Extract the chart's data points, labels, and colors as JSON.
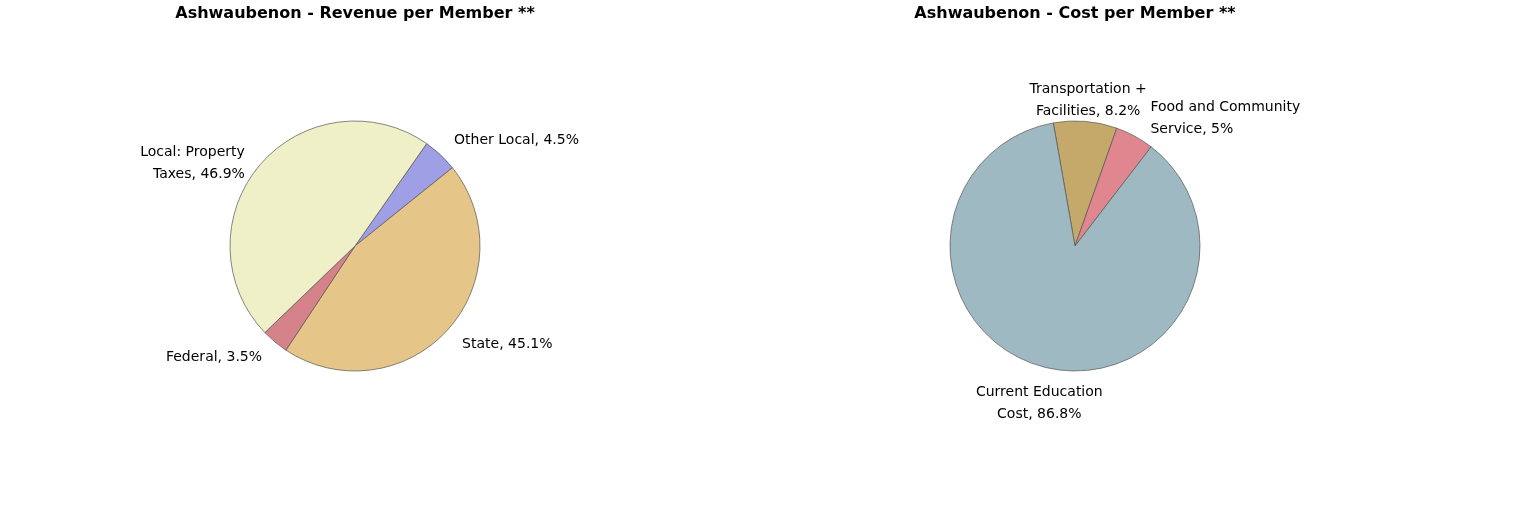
{
  "chart_data": [
    {
      "type": "pie",
      "title": "Ashwaubenon - Revenue per Member **",
      "categories": [
        "Other Local",
        "State",
        "Federal",
        "Local: Property Taxes"
      ],
      "values": [
        4.5,
        45.1,
        3.5,
        46.9
      ],
      "value_labels": [
        "4.5%",
        "45.1%",
        "3.5%",
        "46.9%"
      ],
      "colors": [
        "#9f9fe6",
        "#e6c688",
        "#d5828a",
        "#efefc8"
      ],
      "legend": false
    },
    {
      "type": "pie",
      "title": "Ashwaubenon - Cost per Member **",
      "categories": [
        "Transportation + Facilities",
        "Food and Community Service",
        "Current Education Cost"
      ],
      "values": [
        8.2,
        5,
        86.8
      ],
      "value_labels": [
        "8.2%",
        "5%",
        "86.8%"
      ],
      "colors": [
        "#c4a96a",
        "#e0868f",
        "#9fb9c2"
      ],
      "legend": false
    }
  ]
}
